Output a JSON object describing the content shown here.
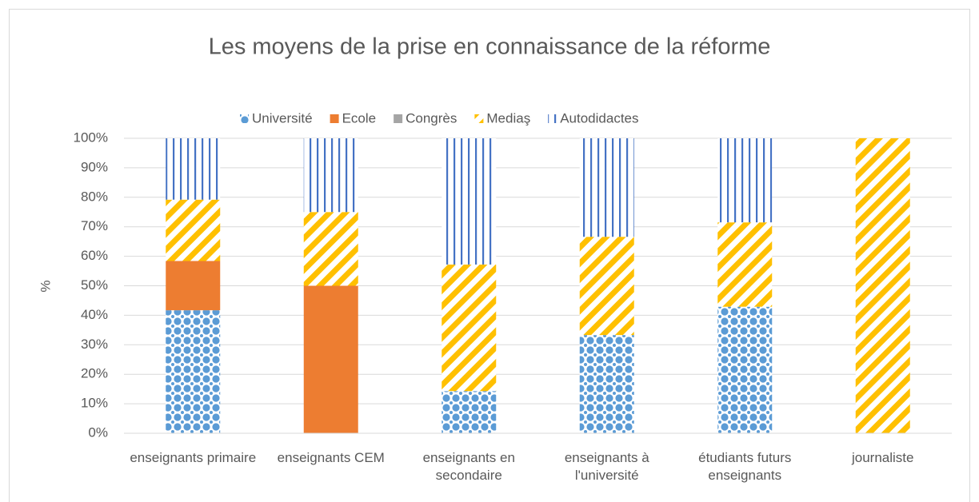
{
  "chart_data": {
    "type": "stacked_bar",
    "title": "Les moyens de la prise en connaissance de la réforme",
    "y_label": "%",
    "categories": [
      "enseignants primaire",
      "enseignants CEM",
      "enseignants en secondaire",
      "enseignants à l'université",
      "étudiants futurs enseignants",
      "journaliste"
    ],
    "series": [
      {
        "name": "Université",
        "color": "#5b9bd5",
        "values": [
          41.7,
          0,
          14.3,
          33.3,
          42.9,
          0
        ]
      },
      {
        "name": "Ecole",
        "color": "#ed7d31",
        "values": [
          16.7,
          50,
          0,
          0,
          0,
          0
        ]
      },
      {
        "name": "Congrès",
        "color": "#a5a5a5",
        "values": [
          0,
          0,
          0,
          0,
          0,
          0
        ]
      },
      {
        "name": "Mediaş",
        "color": "#ffc000",
        "values": [
          20.8,
          25,
          42.9,
          33.3,
          28.6,
          100
        ]
      },
      {
        "name": "Autodidactes",
        "color": "#4472c4",
        "values": [
          20.8,
          25,
          42.8,
          33.4,
          28.5,
          0
        ]
      }
    ],
    "ylim": [
      0,
      100
    ],
    "yticks": [
      {
        "value": 0,
        "label": "0%"
      },
      {
        "value": 10,
        "label": "10%"
      },
      {
        "value": 20,
        "label": "20%"
      },
      {
        "value": 30,
        "label": "30%"
      },
      {
        "value": 40,
        "label": "40%"
      },
      {
        "value": 50,
        "label": "50%"
      },
      {
        "value": 60,
        "label": "60%"
      },
      {
        "value": 70,
        "label": "70%"
      },
      {
        "value": 80,
        "label": "80%"
      },
      {
        "value": 90,
        "label": "90%"
      },
      {
        "value": 100,
        "label": "100%"
      }
    ],
    "grid": true,
    "legend": "top"
  }
}
